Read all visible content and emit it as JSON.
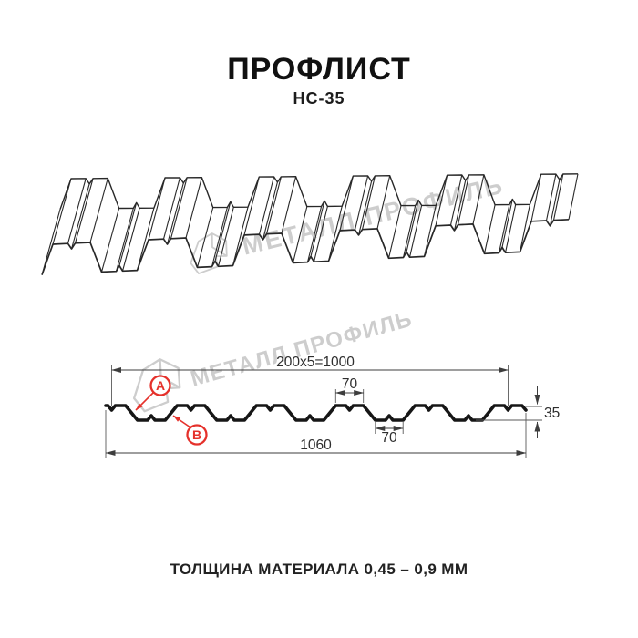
{
  "page": {
    "title": "ПРОФЛИСТ",
    "subtitle": "НС-35",
    "footer_note": "ТОЛЩИНА МАТЕРИАЛА 0,45 – 0,9 ММ"
  },
  "watermark": {
    "text": "МЕТАЛЛ ПРОФИЛЬ",
    "logo": "metall-profil-logo"
  },
  "dimensions": {
    "module_width": "200x5=1000",
    "crest_top_width": "70",
    "crest_bottom_width": "70",
    "overall_width": "1060",
    "profile_height": "35"
  },
  "markers": {
    "a": "А",
    "b": "В"
  },
  "colors": {
    "accent_red": "#e5312b",
    "profile_black": "#161616",
    "dimension_gray": "#3d3d3d",
    "watermark_gray": "#cdcdcd",
    "background": "#ffffff"
  }
}
